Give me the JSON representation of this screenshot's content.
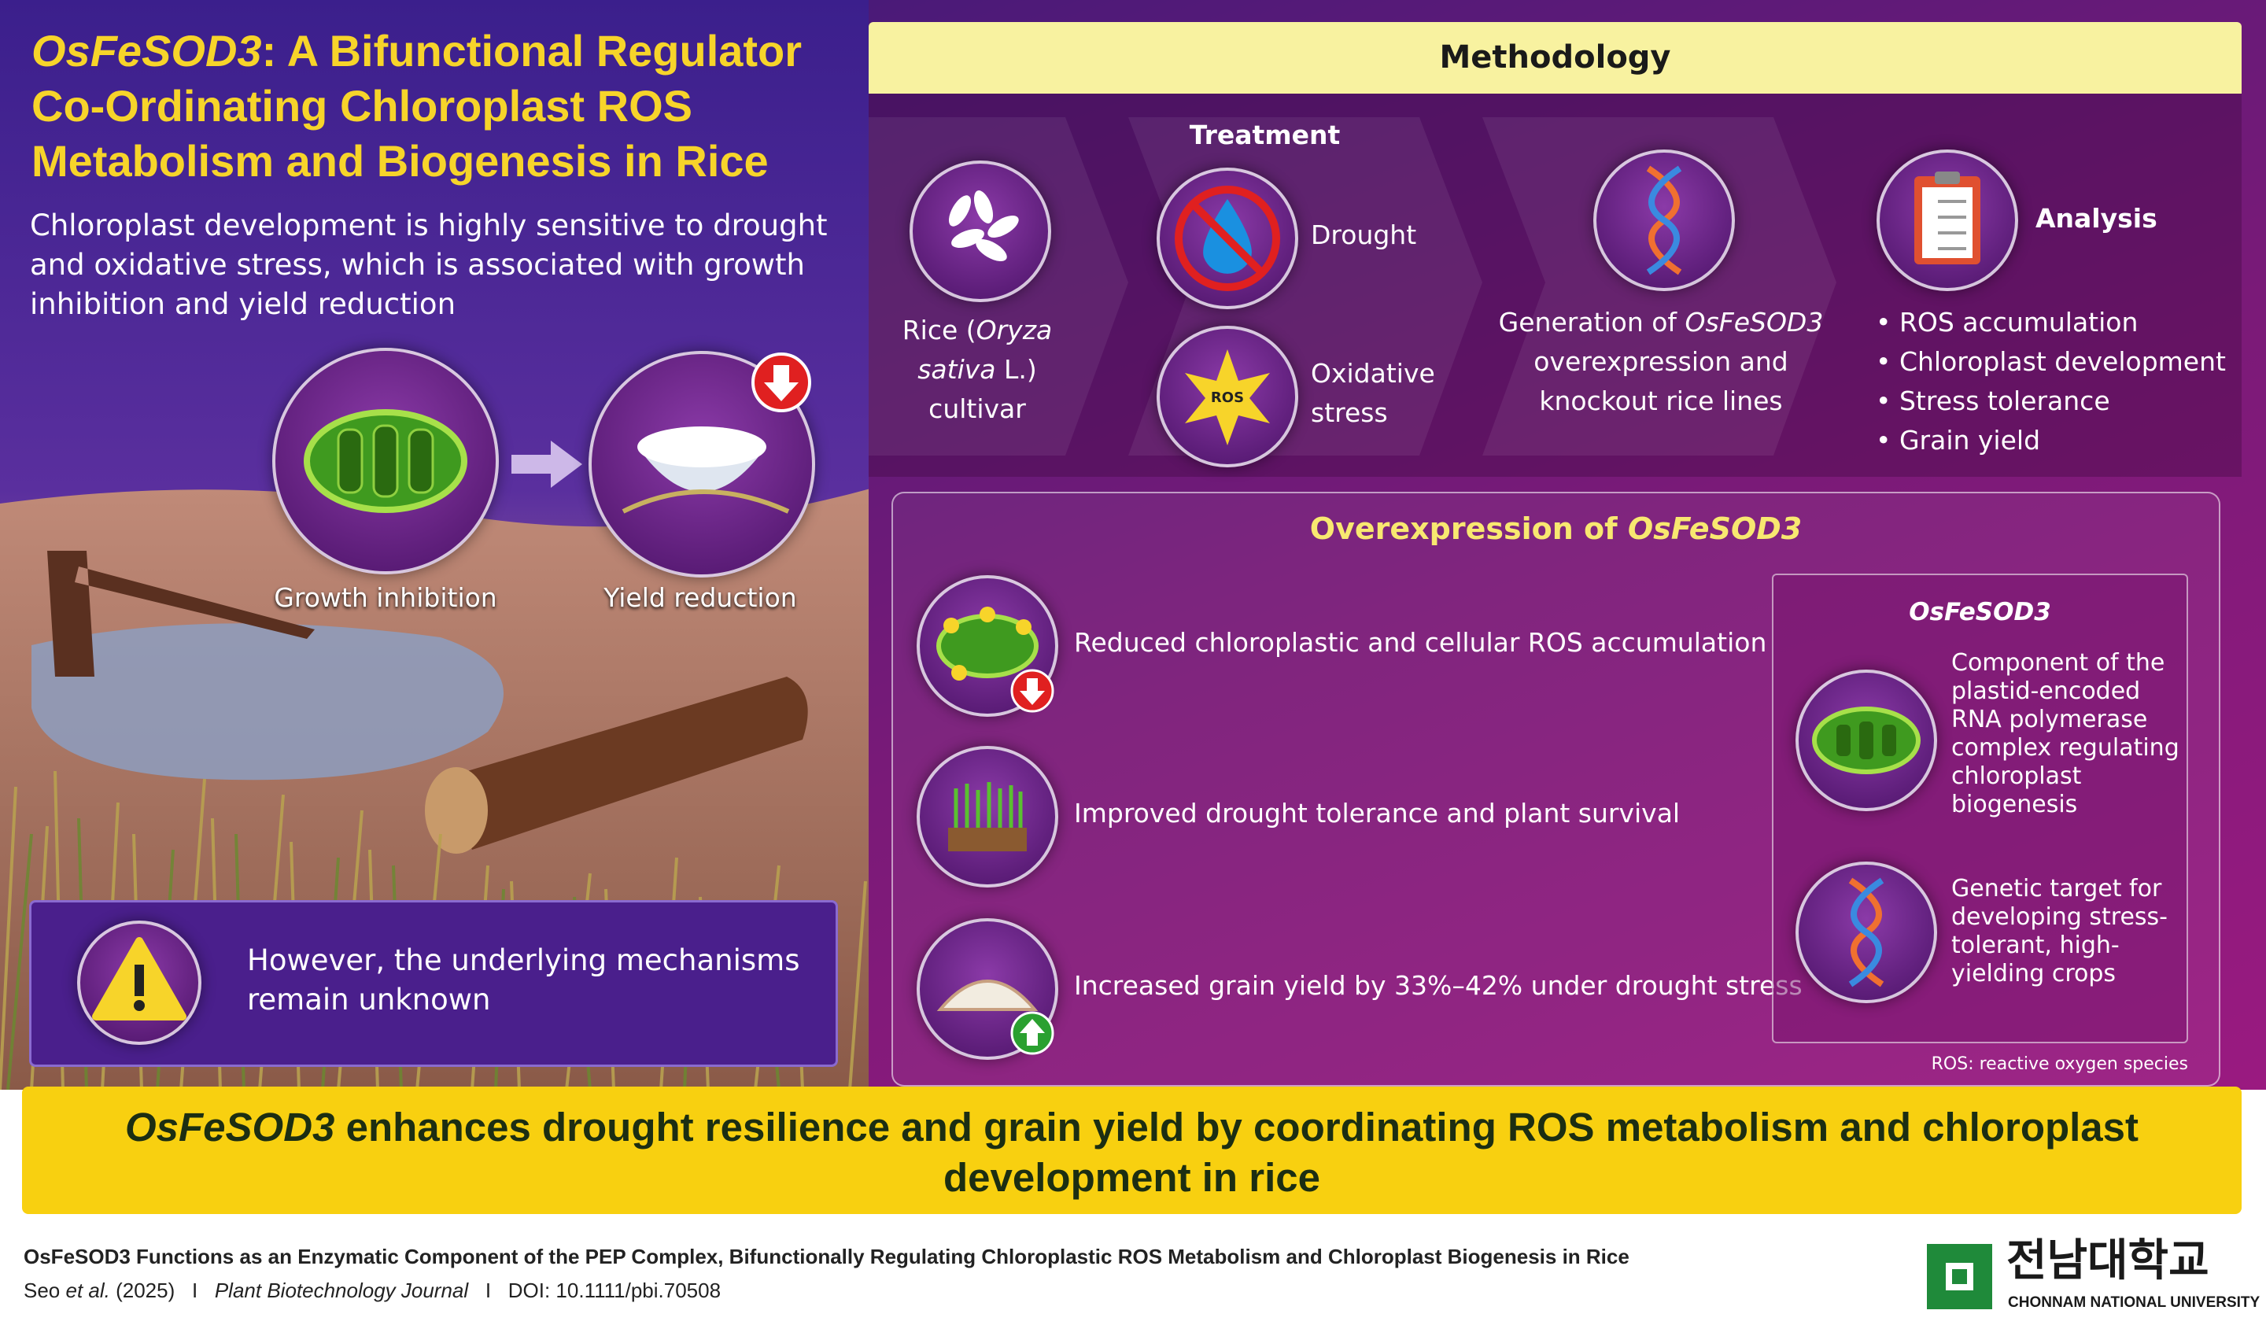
{
  "header": {
    "title_gene": "OsFeSOD3",
    "title_rest": ": A Bifunctional Regulator Co-Ordinating Chloroplast ROS Metabolism and Biogenesis in Rice",
    "subtitle": "Chloroplast development is highly sensitive to drought and oxidative stress, which is associated with growth inhibition and yield reduction"
  },
  "problem": {
    "labels": [
      "Growth inhibition",
      "Yield reduction"
    ],
    "warning": "However, the underlying mechanisms remain unknown"
  },
  "methodology": {
    "title": "Methodology",
    "rice": [
      "Rice (",
      "Oryza sativa",
      " L.) cultivar"
    ],
    "treatment": {
      "title": "Treatment",
      "items": [
        "Drought",
        "Oxidative stress"
      ],
      "ros_icon": "ROS"
    },
    "generation": [
      "Generation of ",
      "OsFeSOD3",
      " overexpression and knockout rice lines"
    ],
    "analysis": {
      "title": "Analysis",
      "items": [
        "ROS accumulation",
        "Chloroplast development",
        "Stress tolerance",
        "Grain yield"
      ]
    }
  },
  "overexpression": {
    "title": [
      "Overexpression of ",
      "OsFeSOD3"
    ],
    "items": [
      "Reduced chloroplastic and cellular ROS accumulation",
      "Improved drought tolerance and plant survival",
      "Increased grain yield by 33%–42% under drought stress"
    ],
    "box": {
      "title": "OsFeSOD3",
      "notes": [
        "Component of the plastid-encoded RNA polymerase complex regulating chloroplast biogenesis",
        "Genetic target for developing stress-tolerant, high-yielding crops"
      ]
    },
    "footnote": "ROS: reactive oxygen species"
  },
  "conclusion": [
    "OsFeSOD3",
    " enhances drought resilience and grain yield by coordinating ROS metabolism and chloroplast development in rice"
  ],
  "footer": {
    "title": "OsFeSOD3 Functions as an Enzymatic Component of the PEP Complex, Bifunctionally Regulating Chloroplastic ROS Metabolism and Chloroplast Biogenesis in Rice",
    "authors": [
      "Seo ",
      "et al.",
      " (2025)"
    ],
    "separator": "I",
    "journal": "Plant Biotechnology Journal",
    "doi": "DOI: 10.1111/pbi.70508",
    "logo_korean": "전남대학교",
    "logo_english": "CHONNAM NATIONAL UNIVERSITY"
  }
}
